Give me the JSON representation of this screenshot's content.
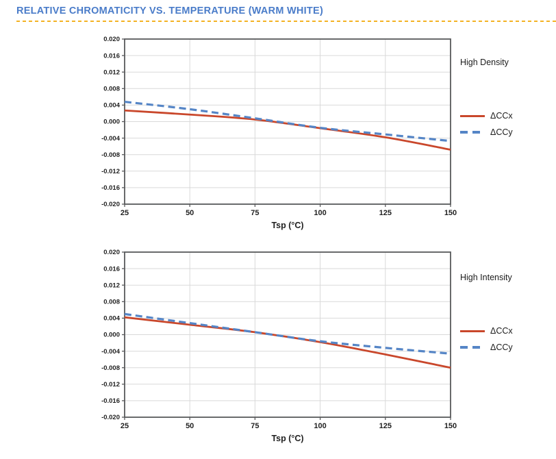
{
  "page": {
    "title": "RELATIVE CHROMATICITY VS. TEMPERATURE (WARM WHITE)"
  },
  "colors": {
    "title_blue": "#4a7cc9",
    "rule_gold": "#f4b223",
    "ccx_red": "#c9472b",
    "ccy_blue": "#5585c6",
    "grid": "#d9d9d9",
    "axis": "#58595b",
    "text": "#1f1f1f"
  },
  "chart_data": [
    {
      "type": "line",
      "group_label": "High Density",
      "xlabel": "Tsp (°C)",
      "xlim": [
        25,
        150
      ],
      "xticks": [
        25,
        50,
        75,
        100,
        125,
        150
      ],
      "ylim": [
        -0.02,
        0.02
      ],
      "ytick_step": 0.004,
      "grid": true,
      "legend_position": "right",
      "x": [
        25,
        50,
        75,
        100,
        125,
        150
      ],
      "series": [
        {
          "name": "ΔCCx",
          "style": "solid",
          "color_key": "ccx_red",
          "values": [
            0.0027,
            0.0017,
            0.0005,
            -0.0016,
            -0.0038,
            -0.0068
          ]
        },
        {
          "name": "ΔCCy",
          "style": "dashed",
          "color_key": "ccy_blue",
          "values": [
            0.0048,
            0.003,
            0.0008,
            -0.0015,
            -0.0031,
            -0.0047
          ]
        }
      ]
    },
    {
      "type": "line",
      "group_label": "High Intensity",
      "xlabel": "Tsp (°C)",
      "xlim": [
        25,
        150
      ],
      "xticks": [
        25,
        50,
        75,
        100,
        125,
        150
      ],
      "ylim": [
        -0.02,
        0.02
      ],
      "ytick_step": 0.004,
      "grid": true,
      "legend_position": "right",
      "x": [
        25,
        50,
        75,
        100,
        125,
        150
      ],
      "series": [
        {
          "name": "ΔCCx",
          "style": "solid",
          "color_key": "ccx_red",
          "values": [
            0.0042,
            0.0024,
            0.0006,
            -0.0018,
            -0.0048,
            -0.008
          ]
        },
        {
          "name": "ΔCCy",
          "style": "dashed",
          "color_key": "ccy_blue",
          "values": [
            0.005,
            0.0028,
            0.0006,
            -0.0016,
            -0.0032,
            -0.0046
          ]
        }
      ]
    }
  ]
}
